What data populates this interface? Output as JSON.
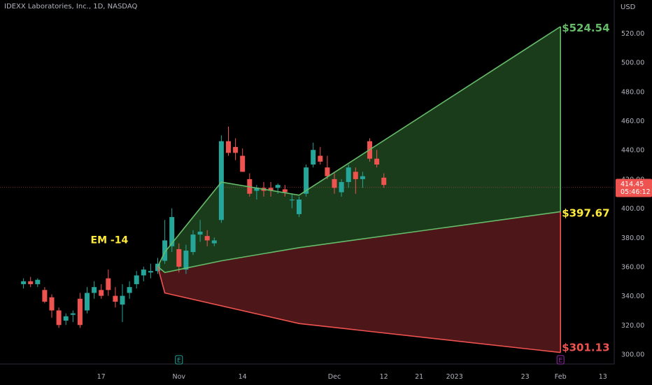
{
  "header": {
    "symbol_line": "IDEXX Laboratories, Inc., 1D, NASDAQ",
    "currency": "USD"
  },
  "colors": {
    "up": "#26a69a",
    "down": "#ef5350",
    "upper_fill": "#1e4620",
    "upper_line": "#66bb6a",
    "lower_fill": "#5a1a1d",
    "lower_line": "#ef5350",
    "mid_label": "#ffeb3b",
    "upper_label": "#66bb6a",
    "lower_label": "#ef5350",
    "axis_text": "#b2b5be",
    "price_badge": "#ef5350"
  },
  "price_tag": {
    "price": "414.45",
    "timer": "05:46:12",
    "value": 414.45
  },
  "chart_data": {
    "type": "candlestick",
    "y_axis": {
      "ylim": [
        296,
        532
      ],
      "ticks": [
        300,
        320,
        340,
        360,
        380,
        400,
        420,
        440,
        460,
        480,
        500,
        520
      ]
    },
    "x_ticks": [
      {
        "label": "17",
        "i": -3
      },
      {
        "label": "Nov",
        "i": 8
      },
      {
        "label": "14",
        "i": 17
      },
      {
        "label": "Dec",
        "i": 30
      },
      {
        "label": "12",
        "i": 37
      },
      {
        "label": "21",
        "i": 42
      },
      {
        "label": "2023",
        "i": 47
      },
      {
        "label": "23",
        "i": 57
      },
      {
        "label": "Feb",
        "i": 62
      },
      {
        "label": "13",
        "i": 68
      }
    ],
    "candles": [
      [
        -14,
        348,
        352,
        345,
        350
      ],
      [
        -13,
        350,
        353,
        346,
        348
      ],
      [
        -12,
        348,
        352,
        346,
        351
      ],
      [
        -11,
        344,
        346,
        335,
        336
      ],
      [
        -10,
        339,
        341,
        325,
        330
      ],
      [
        -9,
        330,
        332,
        318,
        320
      ],
      [
        -8,
        323,
        328,
        320,
        326
      ],
      [
        -7,
        327,
        330,
        322,
        328
      ],
      [
        -6,
        338,
        342,
        318,
        320
      ],
      [
        -5,
        330,
        346,
        328,
        342
      ],
      [
        -4,
        342,
        350,
        338,
        346
      ],
      [
        -3,
        344,
        348,
        338,
        340
      ],
      [
        -2,
        352,
        358,
        340,
        344
      ],
      [
        -1,
        340,
        346,
        332,
        336
      ],
      [
        0,
        334,
        348,
        322,
        340
      ],
      [
        1,
        342,
        350,
        338,
        346
      ],
      [
        2,
        348,
        357,
        345,
        354
      ],
      [
        3,
        354,
        360,
        350,
        358
      ],
      [
        4,
        356,
        362,
        352,
        357
      ],
      [
        5,
        357,
        366,
        355,
        362
      ],
      [
        6,
        364,
        392,
        362,
        378
      ],
      [
        7,
        374,
        400,
        370,
        394
      ],
      [
        8,
        372,
        376,
        356,
        360
      ],
      [
        9,
        358,
        375,
        355,
        371
      ],
      [
        10,
        370,
        385,
        368,
        382
      ],
      [
        11,
        382,
        392,
        377,
        384
      ],
      [
        12,
        381,
        385,
        374,
        378
      ],
      [
        13,
        376,
        380,
        374,
        378
      ],
      [
        14,
        392,
        450,
        390,
        446
      ],
      [
        15,
        446,
        456,
        436,
        438
      ],
      [
        16,
        442,
        448,
        433,
        438
      ],
      [
        17,
        436,
        441,
        425,
        425
      ],
      [
        18,
        420,
        424,
        408,
        410
      ],
      [
        19,
        412,
        416,
        406,
        414
      ],
      [
        20,
        414,
        418,
        408,
        412
      ],
      [
        21,
        414,
        418,
        408,
        412
      ],
      [
        22,
        414,
        417,
        410,
        416
      ],
      [
        23,
        413,
        416,
        408,
        411
      ],
      [
        24,
        406,
        410,
        400,
        406
      ],
      [
        25,
        396,
        408,
        394,
        406
      ],
      [
        26,
        410,
        430,
        408,
        428
      ],
      [
        27,
        430,
        445,
        428,
        440
      ],
      [
        28,
        436,
        442,
        430,
        432
      ],
      [
        29,
        428,
        436,
        420,
        422
      ],
      [
        30,
        420,
        424,
        410,
        414
      ],
      [
        31,
        411,
        420,
        408,
        418
      ],
      [
        32,
        418,
        430,
        414,
        428
      ],
      [
        33,
        425,
        428,
        410,
        420
      ],
      [
        34,
        420,
        425,
        414,
        422
      ],
      [
        35,
        446,
        448,
        432,
        434
      ],
      [
        36,
        434,
        440,
        428,
        430
      ],
      [
        37,
        421,
        424,
        414,
        416
      ]
    ],
    "expected_move": {
      "label": "EM -14",
      "anchor": {
        "i": 5,
        "price": 360
      },
      "upper": [
        [
          5,
          360
        ],
        [
          6,
          370
        ],
        [
          14,
          418
        ],
        [
          25,
          409
        ],
        [
          62,
          524.54
        ]
      ],
      "middle": [
        [
          5,
          360
        ],
        [
          6,
          356
        ],
        [
          14,
          364
        ],
        [
          25,
          373
        ],
        [
          62,
          397.67
        ]
      ],
      "lower": [
        [
          5,
          360
        ],
        [
          6,
          342
        ],
        [
          25,
          321
        ],
        [
          62,
          301.13
        ]
      ],
      "upper_label": "$524.54",
      "middle_label": "$397.67",
      "lower_label": "$301.13"
    },
    "earnings_markers": [
      {
        "i": 8,
        "letter": "E"
      },
      {
        "i": 62,
        "letter": "E"
      }
    ]
  }
}
